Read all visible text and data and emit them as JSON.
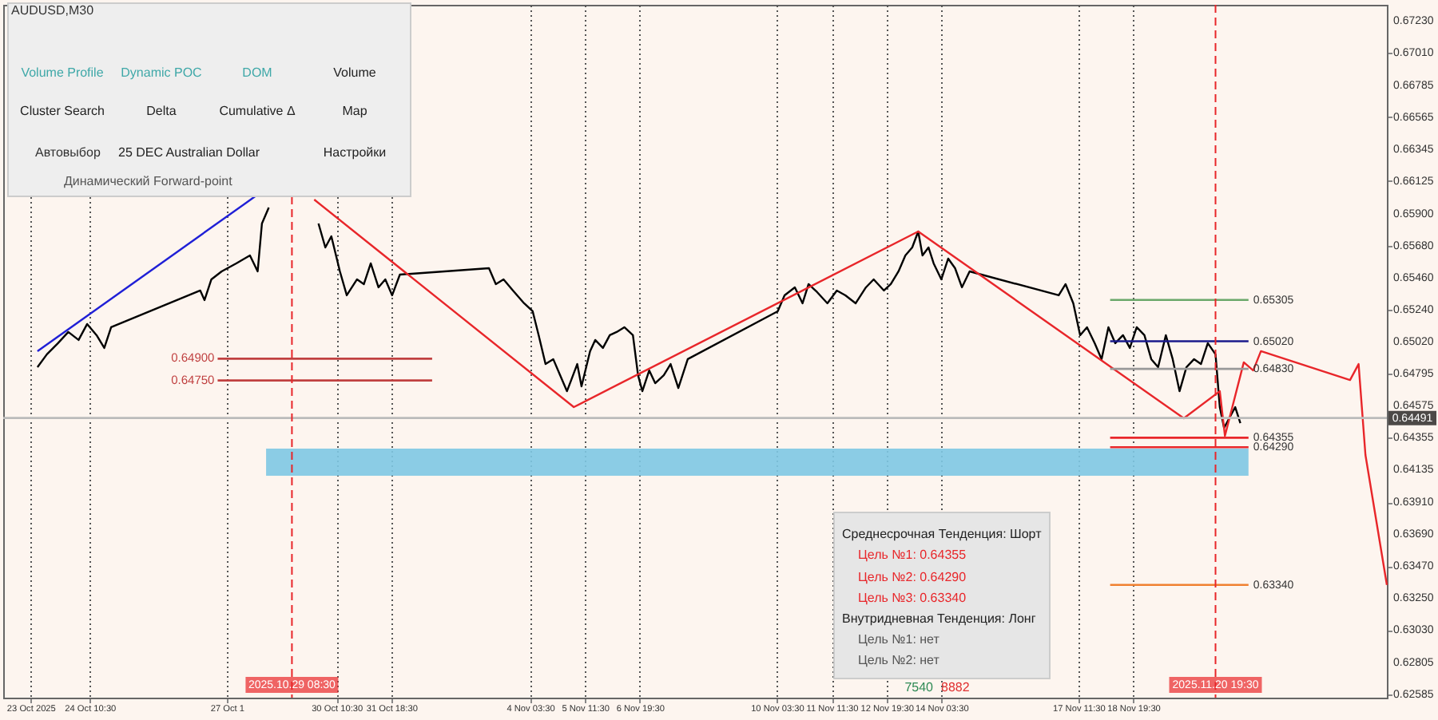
{
  "chart_data": {
    "type": "line",
    "xlim": [
      "2025-10-22T08:00",
      "2025-11-24T23:30"
    ],
    "ylim": [
      0.62563,
      0.6734
    ],
    "xticks": [
      {
        "value": "2025-10-23T00:00",
        "label": "23 Oct 2025"
      },
      {
        "value": "2025-10-24T10:30",
        "label": "24 Oct 10:30"
      },
      {
        "value": "2025-10-27T18:30",
        "label": "27 Oct 1"
      },
      {
        "value": "2025-10-30T10:30",
        "label": "30 Oct 10:30"
      },
      {
        "value": "2025-10-31T18:30",
        "label": "31 Oct 18:30"
      },
      {
        "value": "2025-11-04T03:30",
        "label": "4 Nov 03:30"
      },
      {
        "value": "2025-11-05T11:30",
        "label": "5 Nov 11:30"
      },
      {
        "value": "2025-11-06T19:30",
        "label": "6 Nov 19:30"
      },
      {
        "value": "2025-11-10T03:30",
        "label": "10 Nov 03:30"
      },
      {
        "value": "2025-11-11T11:30",
        "label": "11 Nov 11:30"
      },
      {
        "value": "2025-11-12T19:30",
        "label": "12 Nov 19:30"
      },
      {
        "value": "2025-11-14T03:30",
        "label": "14 Nov 03:30"
      },
      {
        "value": "2025-11-17T11:30",
        "label": "17 Nov 11:30"
      },
      {
        "value": "2025-11-18T19:30",
        "label": "18 Nov 19:30"
      }
    ],
    "yticks": [
      {
        "value": 0.6723,
        "label": "0.67230"
      },
      {
        "value": 0.6701,
        "label": "0.67010"
      },
      {
        "value": 0.66785,
        "label": "0.66785"
      },
      {
        "value": 0.66565,
        "label": "0.66565"
      },
      {
        "value": 0.66345,
        "label": "0.66345"
      },
      {
        "value": 0.66125,
        "label": "0.66125"
      },
      {
        "value": 0.659,
        "label": "0.65900"
      },
      {
        "value": 0.6568,
        "label": "0.65680"
      },
      {
        "value": 0.6546,
        "label": "0.65460"
      },
      {
        "value": 0.6524,
        "label": "0.65240"
      },
      {
        "value": 0.6502,
        "label": "0.65020"
      },
      {
        "value": 0.64795,
        "label": "0.64795"
      },
      {
        "value": 0.64575,
        "label": "0.64575"
      },
      {
        "value": 0.64355,
        "label": "0.64355"
      },
      {
        "value": 0.64135,
        "label": "0.64135"
      },
      {
        "value": 0.6391,
        "label": "0.63910"
      },
      {
        "value": 0.6369,
        "label": "0.63690"
      },
      {
        "value": 0.6347,
        "label": "0.63470"
      },
      {
        "value": 0.6325,
        "label": "0.63250"
      },
      {
        "value": 0.6303,
        "label": "0.63030"
      },
      {
        "value": 0.62805,
        "label": "0.62805"
      },
      {
        "value": 0.62585,
        "label": "0.62585"
      }
    ],
    "grid": "x",
    "marker": "none",
    "line_style": "solid",
    "series": [
      {
        "color": "#000000",
        "x": [
          "2025-10-23T04:00",
          "2025-10-23T09:30",
          "2025-10-23T16:00",
          "2025-10-23T22:00",
          "2025-10-24T04:00",
          "2025-10-24T09:00",
          "2025-10-24T14:30",
          "2025-10-24T19:00",
          "2025-10-24T23:00",
          "2025-10-27T03:00",
          "2025-10-27T05:30",
          "2025-10-27T09:30",
          "2025-10-27T15:30",
          "2025-10-28T00:00",
          "2025-10-28T08:00",
          "2025-10-28T12:30",
          "2025-10-28T15:00",
          "2025-10-28T19:00",
          "2025-10-28T23:00",
          "2025-10-29T03:00",
          "2025-10-29T06:30",
          "2025-10-29T10:30",
          "2025-10-29T15:00",
          "2025-10-29T20:00",
          "2025-10-30T00:00",
          "2025-10-30T04:00",
          "2025-10-30T07:30",
          "2025-10-30T12:30",
          "2025-10-30T16:30",
          "2025-10-30T22:30",
          "2025-10-31T02:30",
          "2025-10-31T06:30",
          "2025-10-31T11:00",
          "2025-10-31T15:00",
          "2025-10-31T19:00",
          "2025-10-31T23:30",
          "2025-11-03T03:30",
          "2025-11-03T07:30",
          "2025-11-03T12:00",
          "2025-11-03T17:30",
          "2025-11-04T00:00",
          "2025-11-04T05:00",
          "2025-11-04T08:30",
          "2025-11-04T12:30",
          "2025-11-04T17:00",
          "2025-11-04T21:00",
          "2025-11-05T01:00",
          "2025-11-05T03:30",
          "2025-11-05T07:00",
          "2025-11-05T09:30",
          "2025-11-05T14:30",
          "2025-11-05T17:30",
          "2025-11-05T22:00",
          "2025-11-06T02:00",
          "2025-11-06T06:00",
          "2025-11-06T10:30",
          "2025-11-06T15:30",
          "2025-11-06T18:30",
          "2025-11-06T21:00",
          "2025-11-07T01:00",
          "2025-11-07T04:30",
          "2025-11-07T09:30",
          "2025-11-07T13:30",
          "2025-11-07T18:00",
          "2025-11-07T23:30",
          "2025-11-10T04:00",
          "2025-11-10T08:00",
          "2025-11-10T14:00",
          "2025-11-10T18:30",
          "2025-11-10T22:00",
          "2025-11-11T03:00",
          "2025-11-11T09:00",
          "2025-11-11T14:30",
          "2025-11-11T19:30",
          "2025-11-12T01:30",
          "2025-11-12T07:30",
          "2025-11-12T12:00",
          "2025-11-12T18:00",
          "2025-11-12T22:00",
          "2025-11-13T02:30",
          "2025-11-13T06:30",
          "2025-11-13T10:30",
          "2025-11-13T14:00",
          "2025-11-13T16:30",
          "2025-11-13T20:00",
          "2025-11-13T23:00",
          "2025-11-14T03:30",
          "2025-11-14T07:30",
          "2025-11-14T11:30",
          "2025-11-14T15:30",
          "2025-11-14T20:00",
          "2025-11-17T00:00",
          "2025-11-17T04:00",
          "2025-11-17T08:30",
          "2025-11-17T12:30",
          "2025-11-17T16:30",
          "2025-11-17T21:00",
          "2025-11-18T01:00",
          "2025-11-18T05:00",
          "2025-11-18T09:00",
          "2025-11-18T13:30",
          "2025-11-18T17:30",
          "2025-11-18T21:30",
          "2025-11-19T02:00",
          "2025-11-19T06:00",
          "2025-11-19T10:00",
          "2025-11-19T14:30",
          "2025-11-19T18:30",
          "2025-11-19T22:30",
          "2025-11-20T02:30",
          "2025-11-20T07:00",
          "2025-11-20T11:00",
          "2025-11-20T15:00",
          "2025-11-20T19:30",
          "2025-11-20T22:00",
          "2025-11-21T00:30",
          "2025-11-21T03:30",
          "2025-11-21T07:00",
          "2025-11-21T10:00"
        ],
        "values": [
          0.64841,
          0.6493,
          0.65007,
          0.65084,
          0.65029,
          0.65139,
          0.65062,
          0.64974,
          0.65117,
          0.6537,
          0.65304,
          0.65447,
          0.65502,
          0.65557,
          0.65612,
          0.65502,
          0.65832,
          0.65942,
          null,
          null,
          null,
          null,
          null,
          null,
          0.65832,
          0.65667,
          0.65744,
          0.65502,
          0.65337,
          0.65447,
          0.65414,
          0.65557,
          0.65392,
          0.65447,
          0.65337,
          0.6548,
          0.65524,
          0.65414,
          0.65447,
          0.6537,
          0.65282,
          0.65227,
          0.65062,
          0.64863,
          0.64897,
          0.64786,
          0.64676,
          0.64753,
          0.64863,
          0.64709,
          0.64952,
          0.65029,
          0.64974,
          0.65062,
          0.65084,
          0.65117,
          0.65062,
          0.64786,
          0.64676,
          0.64819,
          0.64731,
          0.64786,
          0.64863,
          0.64698,
          0.64897,
          0.65227,
          0.65337,
          0.65392,
          0.65282,
          0.65414,
          0.65359,
          0.65282,
          0.6537,
          0.65337,
          0.65282,
          0.65392,
          0.65447,
          0.6537,
          0.65414,
          0.65502,
          0.65612,
          0.65667,
          0.65777,
          0.65612,
          0.65667,
          0.65557,
          0.65447,
          0.6559,
          0.65524,
          0.65392,
          0.65502,
          0.65337,
          0.65414,
          0.65282,
          0.65062,
          0.65117,
          0.65007,
          0.64897,
          0.65117,
          0.65007,
          0.65062,
          0.64974,
          0.65117,
          0.65062,
          0.64897,
          0.64841,
          0.65062,
          0.64897,
          0.64676,
          0.64841,
          0.64897,
          0.64863,
          0.65007,
          0.6493,
          0.64566,
          0.64423,
          0.64489,
          0.64566,
          0.64456
        ]
      },
      {
        "color": "#e8262a",
        "x": [
          "2025-10-29T21:30",
          "2025-11-05T05:00",
          "2025-11-13T14:00",
          "2025-11-20T01:00",
          "2025-11-20T22:00",
          "2025-11-21T01:00",
          "2025-11-21T12:00",
          "2025-11-21T17:30",
          "2025-11-21T22:00",
          "2025-11-24T02:00",
          "2025-11-24T07:00",
          "2025-11-24T11:00",
          "2025-11-24T23:30"
        ],
        "values": [
          0.65997,
          0.64566,
          0.65777,
          0.64489,
          0.64676,
          0.64368,
          0.64875,
          0.64819,
          0.64952,
          0.64753,
          0.64863,
          0.64236,
          0.6334
        ]
      },
      {
        "color": "#1f1fd6",
        "x": [
          "2025-10-23T04:00",
          "2025-10-28T12:30"
        ],
        "values": [
          0.64952,
          0.66031
        ]
      }
    ],
    "ref_lines": [
      {
        "axis": "y",
        "value": 0.65305,
        "label": "0.65305",
        "color": "#6aa86a"
      },
      {
        "axis": "y",
        "value": 0.6502,
        "label": "0.65020",
        "color": "#1a1a8c"
      },
      {
        "axis": "y",
        "value": 0.6483,
        "label": "0.64830",
        "color": "#999999"
      },
      {
        "axis": "y",
        "value": 0.64355,
        "label": "0.64355",
        "color": "#e8262a"
      },
      {
        "axis": "y",
        "value": 0.6429,
        "label": "0.64290",
        "color": "#e8262a"
      },
      {
        "axis": "y",
        "value": 0.6334,
        "label": "0.63340",
        "color": "#f08030"
      },
      {
        "axis": "y",
        "value": 0.649,
        "label": "0.64900",
        "color": "#c04040"
      },
      {
        "axis": "y",
        "value": 0.6475,
        "label": "0.64750",
        "color": "#c04040"
      },
      {
        "axis": "y",
        "value": 0.64491,
        "label": "0.64491",
        "color": "#bbbbbb"
      },
      {
        "axis": "x",
        "value": "2025-10-29T08:30",
        "label": "2025.10.29 08:30",
        "color": "#e8262a",
        "line_style": "dashed"
      },
      {
        "axis": "x",
        "value": "2025-11-20T19:30",
        "label": "2025.11.20 19:30",
        "color": "#e8262a",
        "line_style": "dashed"
      }
    ],
    "bands": [
      {
        "axis": "y",
        "from": 0.64093,
        "to": 0.6428,
        "color": "#7ec8e3"
      }
    ],
    "annotations": [
      "AUDUSD,M30",
      "Volume Profile",
      "Dynamic POC",
      "DOM",
      "Volume",
      "Cluster Search",
      "Delta",
      "Cumulative Δ",
      "Map",
      "Автовыбор",
      "25 DEC Australian Dollar",
      "Настройки",
      "Динамический Forward-point",
      "Среднесрочная Тенденция: Шорт",
      "Цель №1: 0.64355",
      "Цель №2: 0.64290",
      "Цель №3: 0.63340",
      "Внутридневная Тенденция: Лонг",
      "Цель №1: нет",
      "Цель №2: нет",
      "7540",
      "8882"
    ]
  }
}
